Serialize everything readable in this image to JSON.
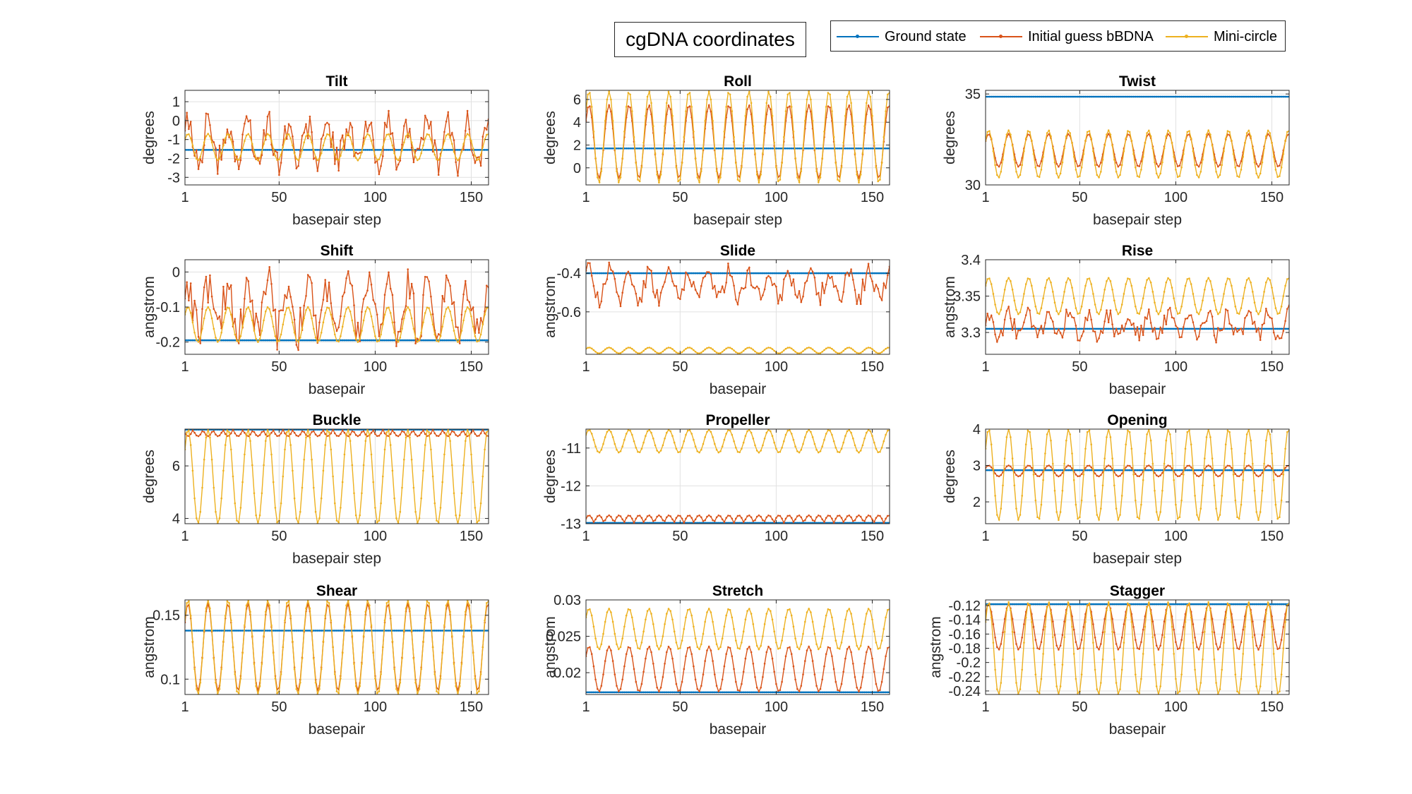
{
  "figure": {
    "title": "cgDNA coordinates"
  },
  "legend": {
    "location": "top-right",
    "items": [
      {
        "label": "Ground state",
        "color": "#0072BD"
      },
      {
        "label": "Initial guess bBDNA",
        "color": "#D95319"
      },
      {
        "label": "Mini-circle",
        "color": "#EDB120"
      }
    ]
  },
  "chart_data": [
    {
      "type": "line",
      "title": "Tilt",
      "xlabel": "basepair step",
      "ylabel": "degrees",
      "xlim": [
        1,
        159
      ],
      "ylim": [
        -3.4,
        1.6
      ],
      "xticks": [
        "1",
        "50",
        "100",
        "150"
      ],
      "yticks": [
        1,
        0,
        -1,
        -2,
        -3
      ],
      "ytick_labels": [
        "1",
        "0",
        "-1",
        "-2",
        "-3"
      ],
      "grid": true,
      "series": [
        {
          "name": "Ground state",
          "kind": "const",
          "base": -1.55,
          "amp": 0
        },
        {
          "name": "Initial guess bBDNA",
          "kind": "noisy",
          "base": -1.2,
          "amp": 1.8
        },
        {
          "name": "Mini-circle",
          "kind": "sine",
          "base": -1.4,
          "amp": 0.7
        }
      ]
    },
    {
      "type": "line",
      "title": "Roll",
      "xlabel": "basepair step",
      "ylabel": "degrees",
      "xlim": [
        1,
        159
      ],
      "ylim": [
        -1.5,
        6.8
      ],
      "xticks": [
        "1",
        "50",
        "100",
        "150"
      ],
      "yticks": [
        6,
        4,
        2,
        0
      ],
      "ytick_labels": [
        "6",
        "4",
        "2",
        "0"
      ],
      "grid": true,
      "series": [
        {
          "name": "Ground state",
          "kind": "const",
          "base": 1.7,
          "amp": 0
        },
        {
          "name": "Initial guess bBDNA",
          "kind": "sine",
          "base": 2.3,
          "amp": 3.2
        },
        {
          "name": "Mini-circle",
          "kind": "sine",
          "base": 2.7,
          "amp": 4.0
        }
      ]
    },
    {
      "type": "line",
      "title": "Twist",
      "xlabel": "basepair step",
      "ylabel": "degrees",
      "xlim": [
        1,
        159
      ],
      "ylim": [
        30,
        35.2
      ],
      "xticks": [
        "1",
        "50",
        "100",
        "150"
      ],
      "yticks": [
        35,
        30
      ],
      "ytick_labels": [
        "35",
        "30"
      ],
      "grid": true,
      "series": [
        {
          "name": "Ground state",
          "kind": "const",
          "base": 34.85,
          "amp": 0
        },
        {
          "name": "Initial guess bBDNA",
          "kind": "sine",
          "base": 31.9,
          "amp": 0.9
        },
        {
          "name": "Mini-circle",
          "kind": "sine",
          "base": 31.7,
          "amp": 1.3
        }
      ]
    },
    {
      "type": "line",
      "title": "Shift",
      "xlabel": "basepair",
      "ylabel": "angstrom",
      "xlim": [
        1,
        159
      ],
      "ylim": [
        -0.235,
        0.035
      ],
      "xticks": [
        "1",
        "50",
        "100",
        "150"
      ],
      "yticks": [
        0,
        -0.1,
        -0.2
      ],
      "ytick_labels": [
        "0",
        "-0.1",
        "-0.2"
      ],
      "grid": true,
      "series": [
        {
          "name": "Ground state",
          "kind": "const",
          "base": -0.195,
          "amp": 0
        },
        {
          "name": "Initial guess bBDNA",
          "kind": "noisy",
          "base": -0.1,
          "amp": 0.125
        },
        {
          "name": "Mini-circle",
          "kind": "sine",
          "base": -0.15,
          "amp": 0.05
        }
      ]
    },
    {
      "type": "line",
      "title": "Slide",
      "xlabel": "basepair",
      "ylabel": "angstrom",
      "xlim": [
        1,
        159
      ],
      "ylim": [
        -0.82,
        -0.33
      ],
      "xticks": [
        "1",
        "50",
        "100",
        "150"
      ],
      "yticks": [
        -0.4,
        -0.6
      ],
      "ytick_labels": [
        "-0.4",
        "-0.6"
      ],
      "grid": true,
      "series": [
        {
          "name": "Ground state",
          "kind": "const",
          "base": -0.4,
          "amp": 0
        },
        {
          "name": "Initial guess bBDNA",
          "kind": "noisy",
          "base": -0.46,
          "amp": 0.12
        },
        {
          "name": "Mini-circle",
          "kind": "sine",
          "base": -0.8,
          "amp": 0.015
        }
      ]
    },
    {
      "type": "line",
      "title": "Rise",
      "xlabel": "basepair",
      "ylabel": "angstrom",
      "xlim": [
        1,
        159
      ],
      "ylim": [
        3.27,
        3.4
      ],
      "xticks": [
        "1",
        "50",
        "100",
        "150"
      ],
      "yticks": [
        3.4,
        3.35,
        3.3
      ],
      "ytick_labels": [
        "3.4",
        "3.35",
        "3.3"
      ],
      "grid": true,
      "series": [
        {
          "name": "Ground state",
          "kind": "const",
          "base": 3.305,
          "amp": 0
        },
        {
          "name": "Initial guess bBDNA",
          "kind": "noisy",
          "base": 3.31,
          "amp": 0.028
        },
        {
          "name": "Mini-circle",
          "kind": "sine",
          "base": 3.35,
          "amp": 0.025
        }
      ]
    },
    {
      "type": "line",
      "title": "Buckle",
      "xlabel": "basepair step",
      "ylabel": "degrees",
      "xlim": [
        1,
        159
      ],
      "ylim": [
        3.8,
        7.4
      ],
      "xticks": [
        "1",
        "50",
        "100",
        "150"
      ],
      "yticks": [
        6,
        4
      ],
      "ytick_labels": [
        "6",
        "4"
      ],
      "grid": true,
      "series": [
        {
          "name": "Ground state",
          "kind": "const",
          "base": 7.38,
          "amp": 0
        },
        {
          "name": "Initial guess bBDNA",
          "kind": "abs",
          "base": 7.38,
          "amp": 0.25
        },
        {
          "name": "Mini-circle",
          "kind": "sine",
          "base": 5.6,
          "amp": 1.8
        }
      ]
    },
    {
      "type": "line",
      "title": "Propeller",
      "xlabel": "",
      "ylabel": "degrees",
      "xlim": [
        1,
        159
      ],
      "ylim": [
        -13.0,
        -10.5
      ],
      "xticks": [
        "1",
        "50",
        "100",
        "150"
      ],
      "yticks": [
        -11,
        -12,
        -13
      ],
      "ytick_labels": [
        "-11",
        "-12",
        "-13"
      ],
      "grid": true,
      "series": [
        {
          "name": "Ground state",
          "kind": "const",
          "base": -12.98,
          "amp": 0
        },
        {
          "name": "Initial guess bBDNA",
          "kind": "abs",
          "base": -12.98,
          "amp": -0.2
        },
        {
          "name": "Mini-circle",
          "kind": "sine",
          "base": -10.82,
          "amp": 0.3
        }
      ]
    },
    {
      "type": "line",
      "title": "Opening",
      "xlabel": "basepair step",
      "ylabel": "degrees",
      "xlim": [
        1,
        159
      ],
      "ylim": [
        1.4,
        4.0
      ],
      "xticks": [
        "1",
        "50",
        "100",
        "150"
      ],
      "yticks": [
        4,
        3,
        2
      ],
      "ytick_labels": [
        "4",
        "3",
        "2"
      ],
      "grid": true,
      "series": [
        {
          "name": "Ground state",
          "kind": "const",
          "base": 2.87,
          "amp": 0
        },
        {
          "name": "Initial guess bBDNA",
          "kind": "sine",
          "base": 2.85,
          "amp": 0.15
        },
        {
          "name": "Mini-circle",
          "kind": "sine",
          "base": 2.75,
          "amp": 1.25
        }
      ]
    },
    {
      "type": "line",
      "title": "Shear",
      "xlabel": "basepair",
      "ylabel": "angstrom",
      "xlim": [
        1,
        159
      ],
      "ylim": [
        0.088,
        0.162
      ],
      "xticks": [
        "1",
        "50",
        "100",
        "150"
      ],
      "yticks": [
        0.15,
        0.1
      ],
      "ytick_labels": [
        "0.15",
        "0.1"
      ],
      "grid": true,
      "series": [
        {
          "name": "Ground state",
          "kind": "const",
          "base": 0.138,
          "amp": 0
        },
        {
          "name": "Initial guess bBDNA",
          "kind": "sine",
          "base": 0.125,
          "amp": 0.034
        },
        {
          "name": "Mini-circle",
          "kind": "sine",
          "base": 0.125,
          "amp": 0.037
        }
      ]
    },
    {
      "type": "line",
      "title": "Stretch",
      "xlabel": "basepair",
      "ylabel": "angstrom",
      "xlim": [
        1,
        159
      ],
      "ylim": [
        0.017,
        0.03
      ],
      "xticks": [
        "1",
        "50",
        "100",
        "150"
      ],
      "yticks": [
        0.03,
        0.025,
        0.02
      ],
      "ytick_labels": [
        "0.03",
        "0.025",
        "0.02"
      ],
      "grid": true,
      "series": [
        {
          "name": "Ground state",
          "kind": "const",
          "base": 0.0173,
          "amp": 0
        },
        {
          "name": "Initial guess bBDNA",
          "kind": "sine",
          "base": 0.0205,
          "amp": 0.0031
        },
        {
          "name": "Mini-circle",
          "kind": "sine",
          "base": 0.026,
          "amp": 0.0028
        }
      ]
    },
    {
      "type": "line",
      "title": "Stagger",
      "xlabel": "basepair",
      "ylabel": "angstrom",
      "xlim": [
        1,
        159
      ],
      "ylim": [
        -0.245,
        -0.112
      ],
      "xticks": [
        "1",
        "50",
        "100",
        "150"
      ],
      "yticks": [
        -0.12,
        -0.14,
        -0.16,
        -0.18,
        -0.2,
        -0.22,
        -0.24
      ],
      "ytick_labels": [
        "-0.12",
        "-0.14",
        "-0.16",
        "-0.18",
        "-0.2",
        "-0.22",
        "-0.24"
      ],
      "grid": true,
      "series": [
        {
          "name": "Ground state",
          "kind": "const",
          "base": -0.118,
          "amp": 0
        },
        {
          "name": "Initial guess bBDNA",
          "kind": "sine",
          "base": -0.15,
          "amp": 0.032
        },
        {
          "name": "Mini-circle",
          "kind": "sine",
          "base": -0.18,
          "amp": 0.065
        }
      ]
    }
  ]
}
